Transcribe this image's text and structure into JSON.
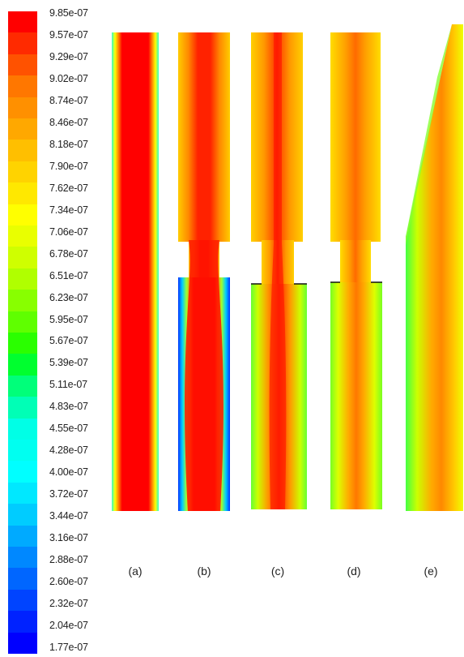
{
  "colorbar": {
    "labels": [
      "9.85e-07",
      "9.57e-07",
      "9.29e-07",
      "9.02e-07",
      "8.74e-07",
      "8.46e-07",
      "8.18e-07",
      "7.90e-07",
      "7.62e-07",
      "7.34e-07",
      "7.06e-07",
      "6.78e-07",
      "6.51e-07",
      "6.23e-07",
      "5.95e-07",
      "5.67e-07",
      "5.39e-07",
      "5.11e-07",
      "4.83e-07",
      "4.55e-07",
      "4.28e-07",
      "4.00e-07",
      "3.72e-07",
      "3.44e-07",
      "3.16e-07",
      "2.88e-07",
      "2.60e-07",
      "2.32e-07",
      "2.04e-07",
      "1.77e-07"
    ],
    "colors": [
      "#ff0000",
      "#ff2a00",
      "#ff5200",
      "#ff7700",
      "#ff9000",
      "#ffa800",
      "#ffbf00",
      "#ffd300",
      "#ffe800",
      "#ffff00",
      "#e9ff00",
      "#cfff00",
      "#b0ff00",
      "#88ff00",
      "#5fff00",
      "#2aff00",
      "#00ff2f",
      "#00ff7a",
      "#00ffb6",
      "#00ffe6",
      "#00fff0",
      "#00ffff",
      "#00e8ff",
      "#00ccff",
      "#00aaff",
      "#0088ff",
      "#0066ff",
      "#0044ff",
      "#0022ff",
      "#0000ff"
    ]
  },
  "panels": [
    {
      "label": "(a)"
    },
    {
      "label": "(b)"
    },
    {
      "label": "(c)"
    },
    {
      "label": "(d)"
    },
    {
      "label": "(e)"
    }
  ]
}
